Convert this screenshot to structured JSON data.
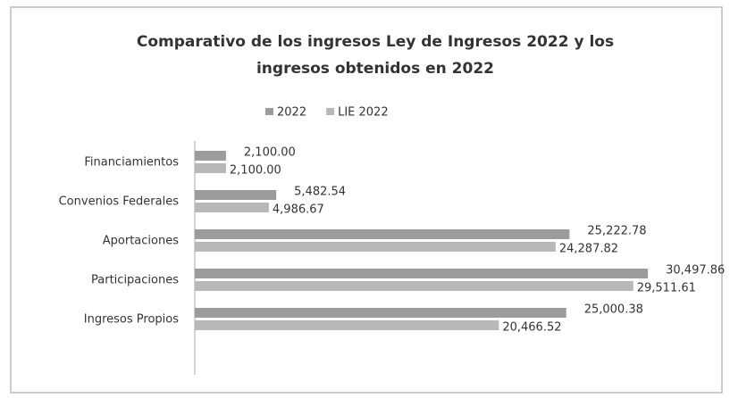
{
  "chart_data": {
    "type": "bar",
    "orientation": "horizontal",
    "title": "Comparativo de los ingresos Ley de Ingresos 2022 y los ingresos obtenidos en 2022",
    "categories": [
      "Financiamientos",
      "Convenios Federales",
      "Aportaciones",
      "Participaciones",
      "Ingresos Propios"
    ],
    "series": [
      {
        "name": "2022",
        "color": "#9c9c9c",
        "values": [
          2100.0,
          5482.54,
          25222.78,
          30497.86,
          25000.38
        ],
        "value_labels": [
          "2,100.00",
          "5,482.54",
          "25,222.78",
          "30,497.86",
          "25,000.38"
        ]
      },
      {
        "name": "LIE 2022",
        "color": "#b8b8b8",
        "values": [
          2100.0,
          4986.67,
          24287.82,
          29511.61,
          20466.52
        ],
        "value_labels": [
          "2,100.00",
          "4,986.67",
          "24,287.82",
          "29,511.61",
          "20,466.52"
        ]
      }
    ],
    "xlim": [
      0,
      35000
    ],
    "legend": "top"
  }
}
